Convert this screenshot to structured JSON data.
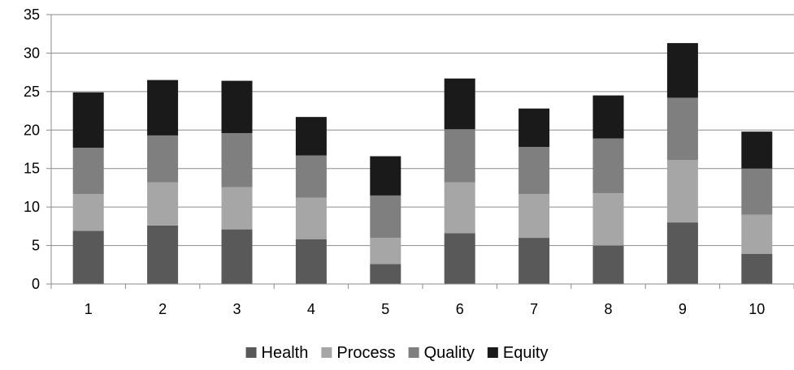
{
  "chart_data": {
    "type": "bar",
    "stacked": true,
    "categories": [
      "1",
      "2",
      "3",
      "4",
      "5",
      "6",
      "7",
      "8",
      "9",
      "10"
    ],
    "series": [
      {
        "name": "Health",
        "color": "#595959",
        "values": [
          6.9,
          7.6,
          7.1,
          5.8,
          2.6,
          6.6,
          6.0,
          5.0,
          8.0,
          3.9
        ]
      },
      {
        "name": "Process",
        "color": "#a6a6a6",
        "values": [
          4.8,
          5.6,
          5.5,
          5.4,
          3.4,
          6.6,
          5.7,
          6.8,
          8.1,
          5.1
        ]
      },
      {
        "name": "Quality",
        "color": "#7f7f7f",
        "values": [
          6.0,
          6.1,
          7.0,
          5.5,
          5.5,
          6.9,
          6.1,
          7.1,
          8.1,
          6.0
        ]
      },
      {
        "name": "Equity",
        "color": "#1a1a1a",
        "values": [
          7.2,
          7.2,
          6.8,
          5.0,
          5.1,
          6.6,
          5.0,
          5.6,
          7.1,
          4.8
        ]
      }
    ],
    "ylim": [
      0,
      35
    ],
    "yticks": [
      "0",
      "5",
      "10",
      "15",
      "20",
      "25",
      "30",
      "35"
    ],
    "grid": true,
    "legend_position": "bottom"
  }
}
